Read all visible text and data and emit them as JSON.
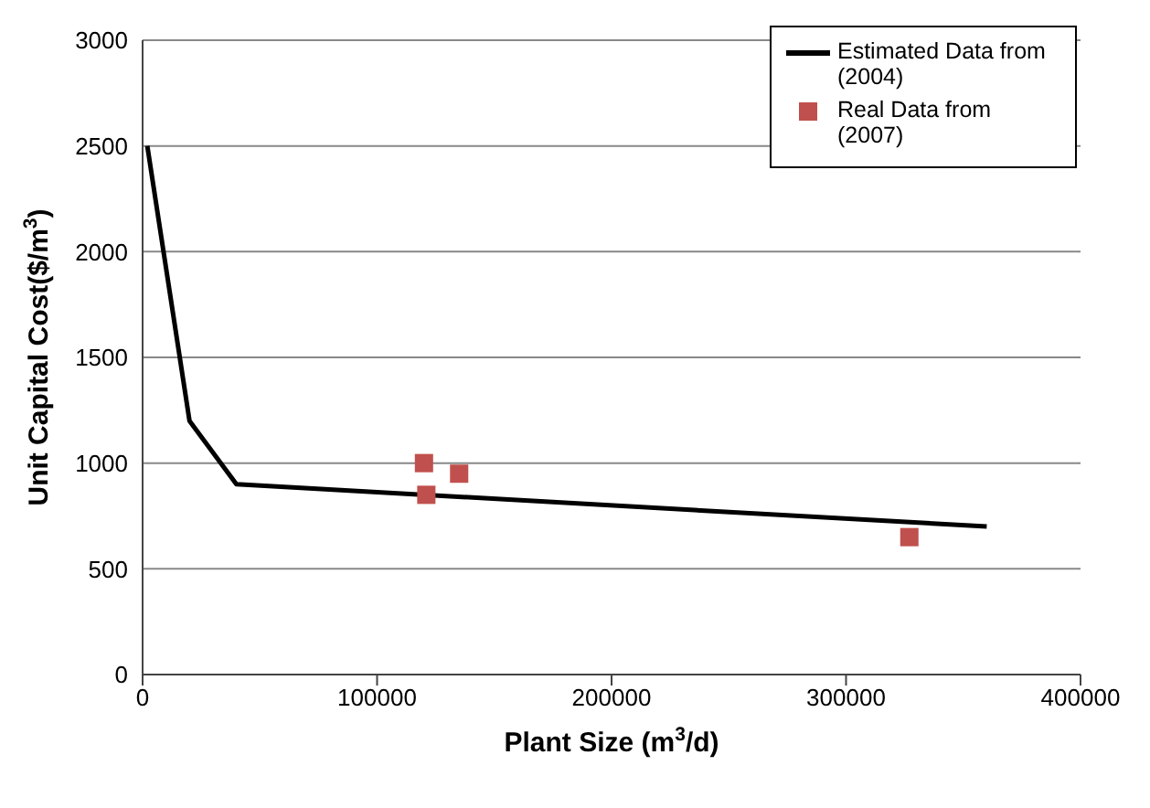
{
  "chart_data": {
    "type": "line",
    "xlabel": "Plant Size (m$^{3}$/d)",
    "ylabel": "Unit Capital Cost($/m$^{3}$)",
    "xlim": [
      0,
      400000
    ],
    "xticks": [
      0,
      100000,
      200000,
      300000,
      400000
    ],
    "ylim": [
      0,
      3000
    ],
    "yticks": [
      0,
      500,
      1000,
      1500,
      2000,
      2500,
      3000
    ],
    "grid": "y",
    "legend": "top right",
    "series": [
      {
        "name": "Estimated Data from (2004)",
        "color": "#000000",
        "marker": "none",
        "x": [
          2000,
          20000,
          40000,
          360000
        ],
        "values": [
          2500,
          1200,
          900,
          700
        ]
      },
      {
        "name": "Real Data from (2007)",
        "type": "scatter",
        "color": "#c0504d",
        "marker": "square",
        "x": [
          120000,
          121000,
          135000,
          327000
        ],
        "values": [
          1000,
          850,
          950,
          650
        ]
      }
    ]
  }
}
